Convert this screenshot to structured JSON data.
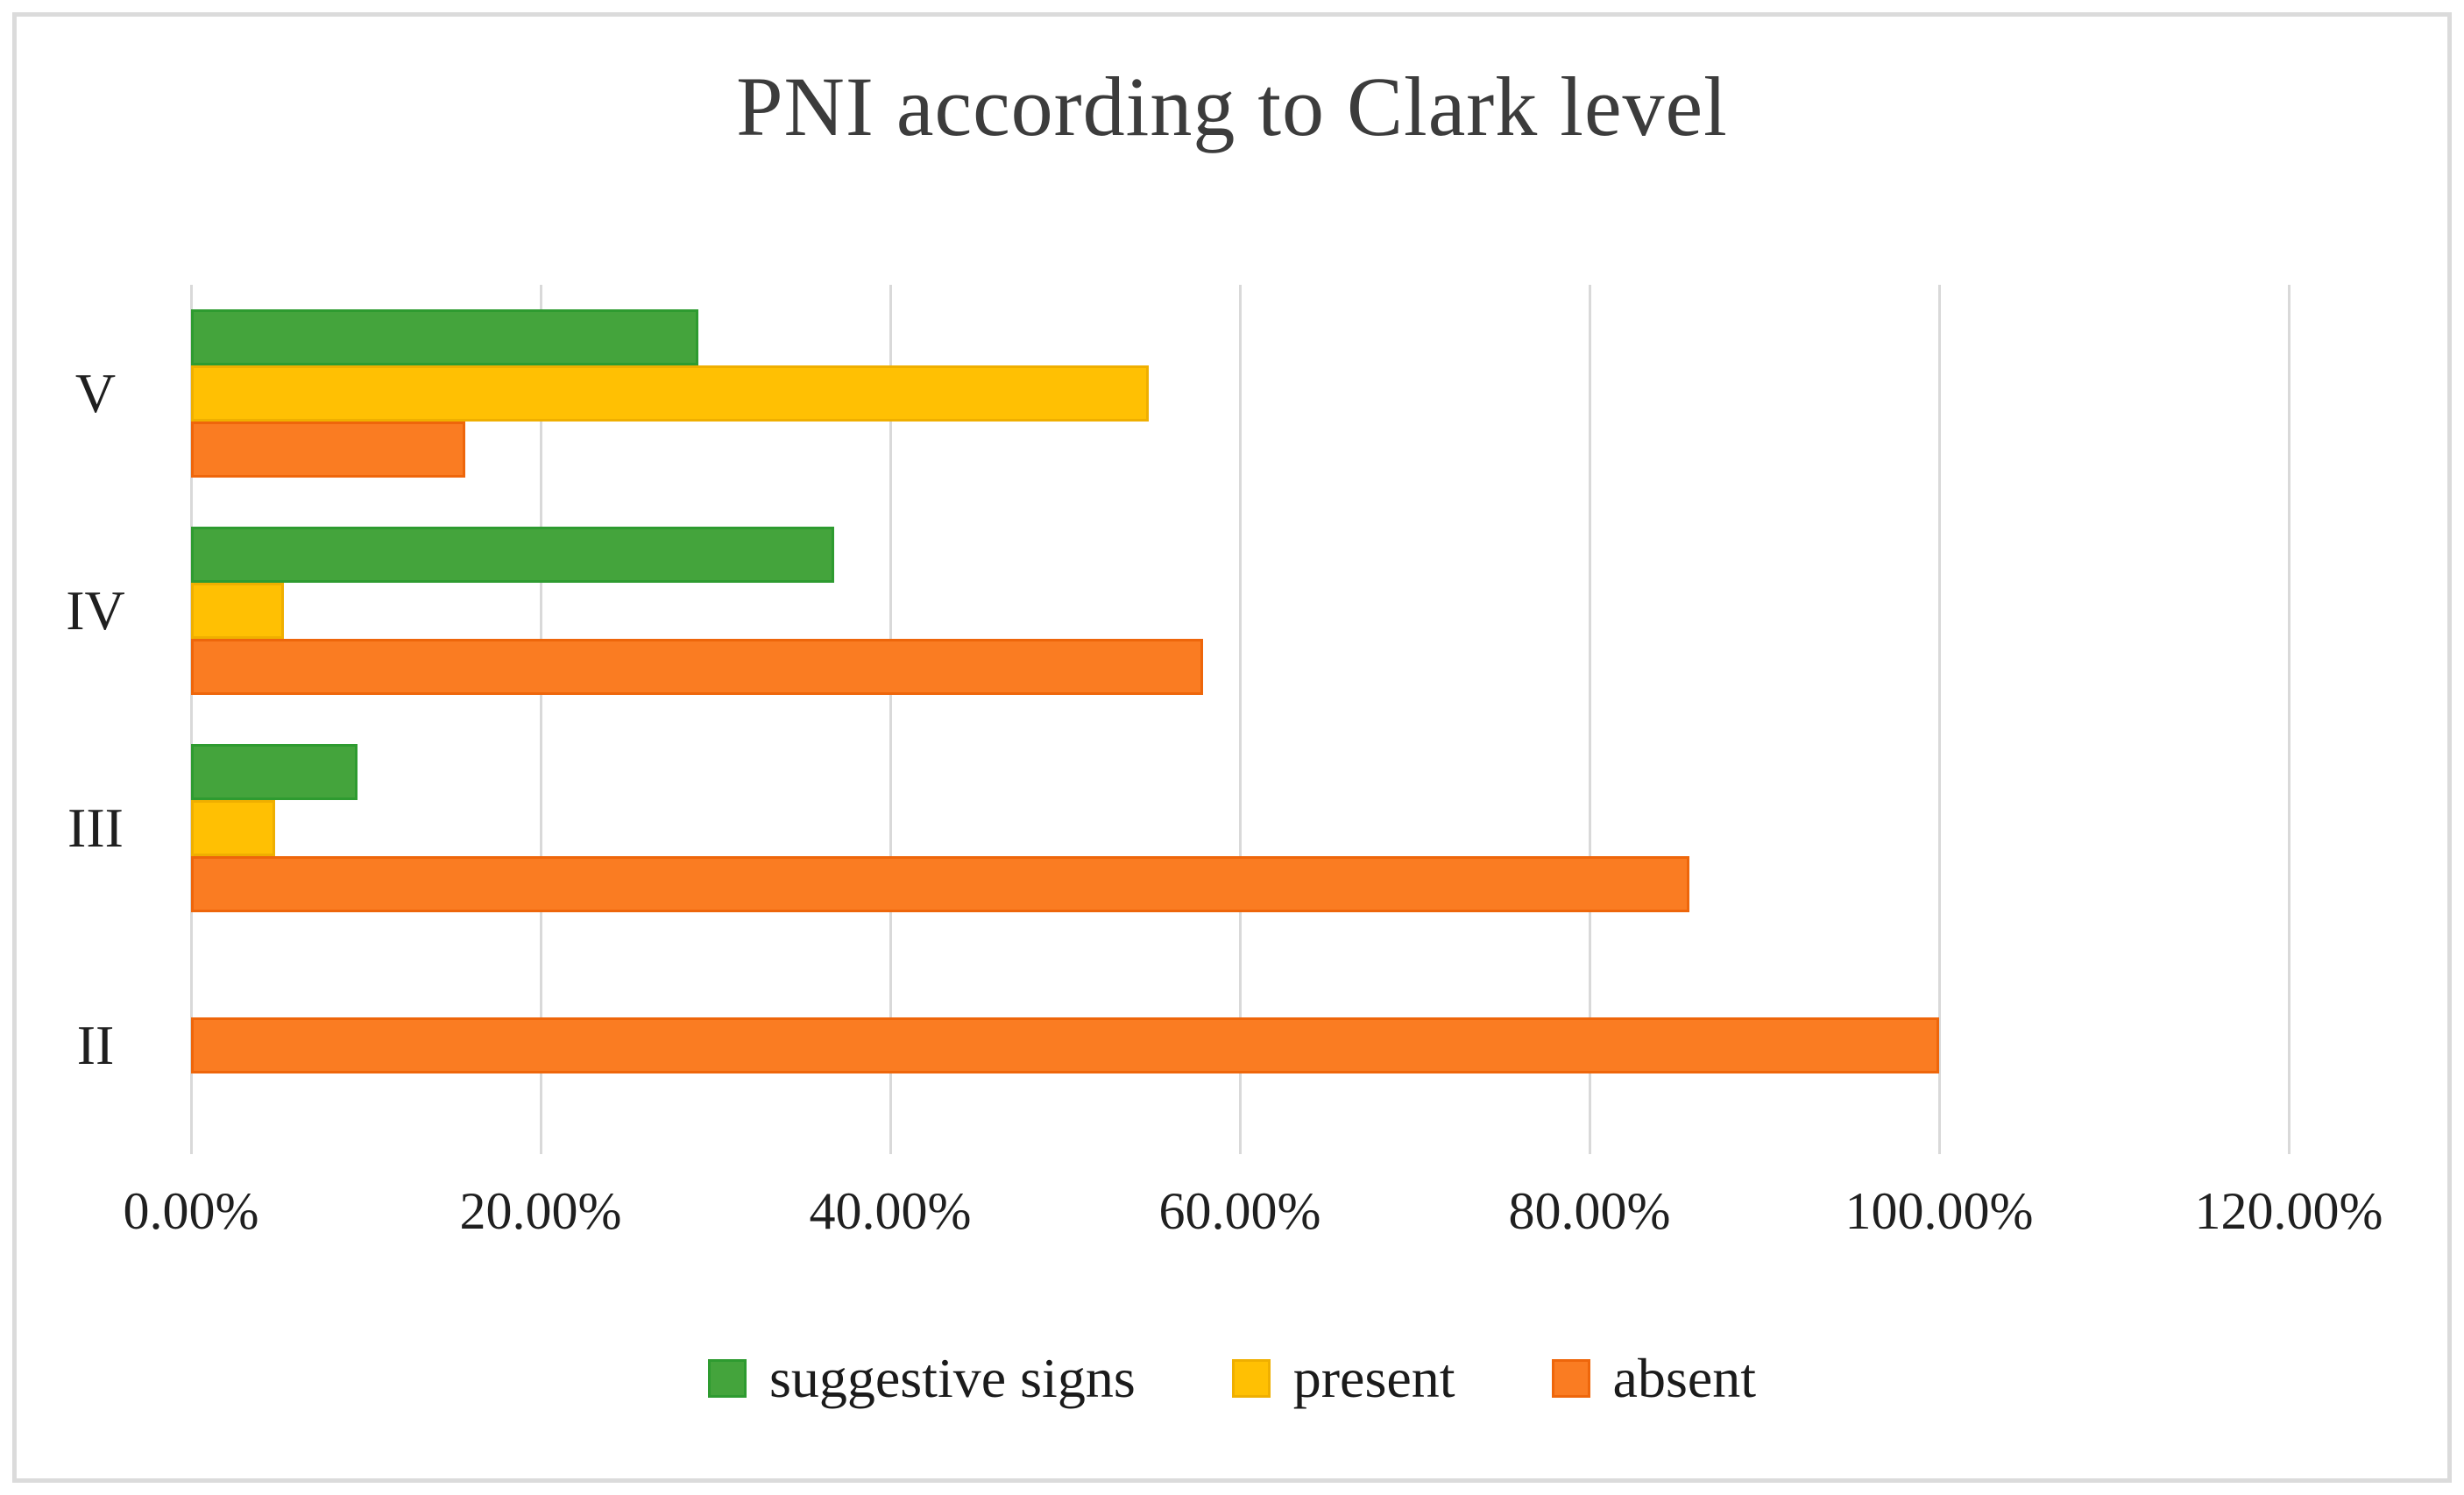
{
  "chart_data": {
    "type": "bar",
    "orientation": "horizontal",
    "title": "PNI according to Clark level",
    "categories": [
      "V",
      "IV",
      "III",
      "II"
    ],
    "series": [
      {
        "name": "suggestive signs",
        "color": "#44a43c",
        "border_color": "#2e9b30",
        "values": [
          29.0,
          36.8,
          9.5,
          0
        ]
      },
      {
        "name": "present",
        "color": "#ffc003",
        "border_color": "#efaf00",
        "values": [
          54.8,
          5.3,
          4.8,
          0
        ]
      },
      {
        "name": "absent",
        "color": "#fa7c22",
        "border_color": "#ee660b",
        "values": [
          15.7,
          57.9,
          85.7,
          100
        ]
      }
    ],
    "x_axis": {
      "min": 0,
      "max": 120,
      "tick_step": 20,
      "ticks": [
        "0.00%",
        "20.00%",
        "40.00%",
        "60.00%",
        "80.00%",
        "100.00%",
        "120.00%"
      ],
      "grid": true
    },
    "legend": {
      "position": "bottom",
      "entries": [
        "suggestive signs",
        "present",
        "absent"
      ]
    },
    "colors": {
      "grid": "#d9d9d9",
      "title_text": "#3c3c3c",
      "axis_text": "#1f1f1f",
      "frame_border": "#dbdbdb"
    }
  }
}
